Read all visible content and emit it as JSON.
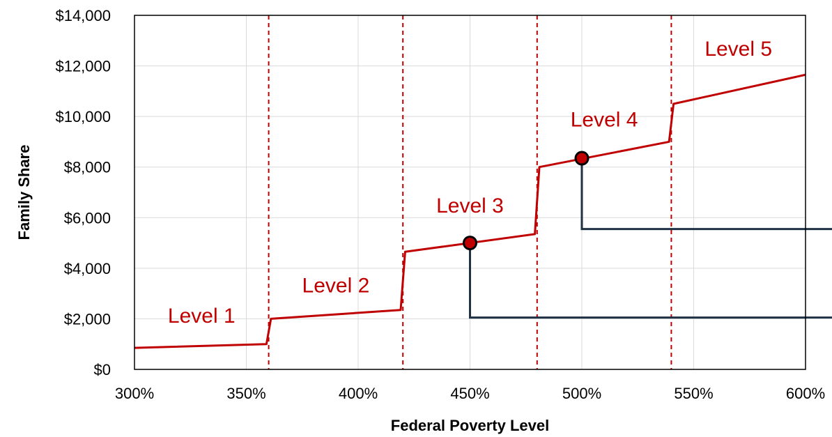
{
  "chart_data": {
    "type": "line",
    "title": "",
    "xlabel": "Federal Poverty Level",
    "ylabel": "Family Share",
    "xlim": [
      300,
      600
    ],
    "ylim": [
      0,
      14000
    ],
    "x_ticks": [
      300,
      350,
      400,
      450,
      500,
      550,
      600
    ],
    "x_tick_labels": [
      "300%",
      "350%",
      "400%",
      "450%",
      "500%",
      "550%",
      "600%"
    ],
    "y_ticks": [
      0,
      2000,
      4000,
      6000,
      8000,
      10000,
      12000,
      14000
    ],
    "y_tick_labels": [
      "$0",
      "$2,000",
      "$4,000",
      "$6,000",
      "$8,000",
      "$10,000",
      "$12,000",
      "$14,000"
    ],
    "grid": true,
    "colors": {
      "series": "#c00000",
      "marker_fill": "#c00000",
      "marker_edge": "#000000",
      "connector": "#1f3144",
      "grid": "#d9d9d9"
    },
    "series": [
      {
        "x": [
          300,
          359,
          361,
          419,
          421,
          479,
          481,
          539,
          541,
          600
        ],
        "y": [
          850,
          1000,
          2000,
          2350,
          4650,
          5350,
          8000,
          9000,
          10500,
          11650
        ]
      }
    ],
    "level_boundaries": [
      360,
      420,
      480,
      540
    ],
    "level_labels": [
      {
        "text": "Level 1",
        "x": 330,
        "y": 1850
      },
      {
        "text": "Level 2",
        "x": 390,
        "y": 3050
      },
      {
        "text": "Level 3",
        "x": 450,
        "y": 6200
      },
      {
        "text": "Level 4",
        "x": 510,
        "y": 9600
      },
      {
        "text": "Level 5",
        "x": 570,
        "y": 12400
      }
    ],
    "highlight_points": [
      {
        "x": 450,
        "y": 5000,
        "callout_y": 2050
      },
      {
        "x": 500,
        "y": 8350,
        "callout_y": 5550
      }
    ]
  }
}
